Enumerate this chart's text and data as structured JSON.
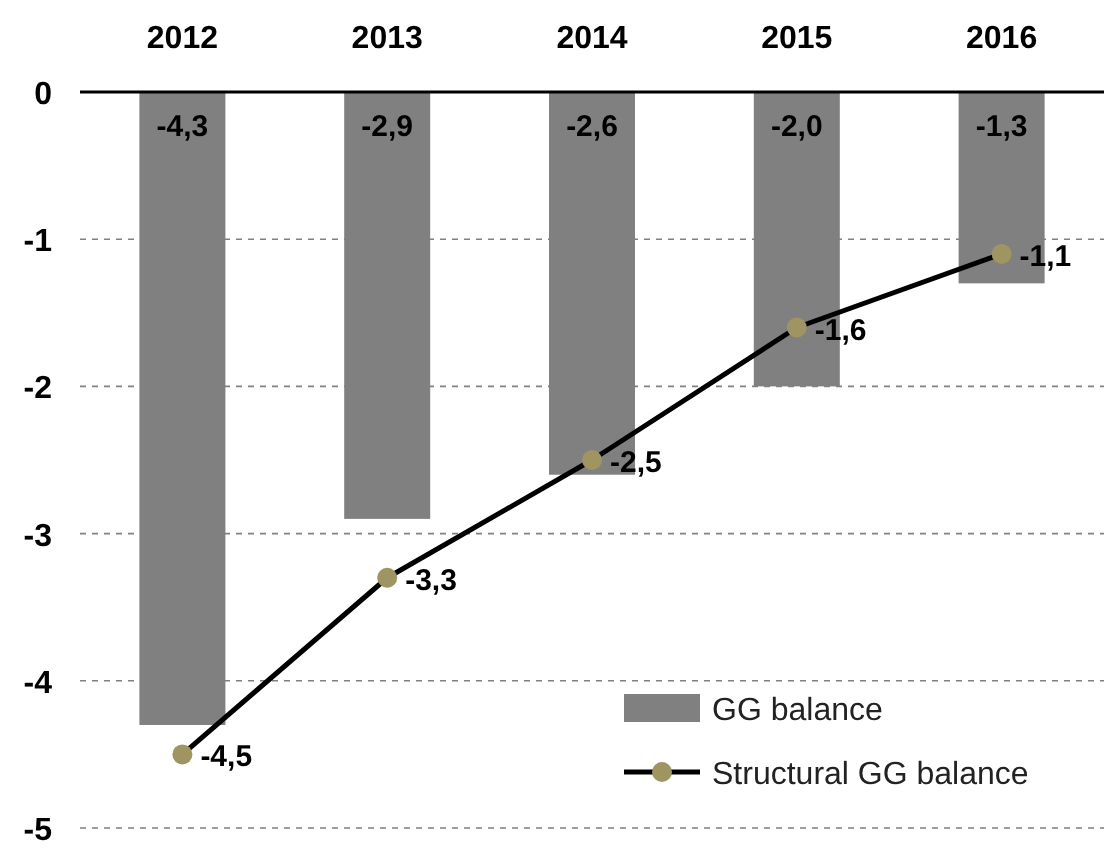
{
  "chart_data": {
    "type": "bar",
    "categories": [
      "2012",
      "2013",
      "2014",
      "2015",
      "2016"
    ],
    "series": [
      {
        "name": "GG balance",
        "color": "#808080",
        "values": [
          -4.3,
          -2.9,
          -2.6,
          -2.0,
          -1.3
        ],
        "value_labels": [
          "-4,3",
          "-2,9",
          "-2,6",
          "-2,0",
          "-1,3"
        ]
      },
      {
        "name": "Structural GG balance",
        "type": "line",
        "color": "#9e9563",
        "values": [
          -4.5,
          -3.3,
          -2.5,
          -1.6,
          -1.1
        ],
        "value_labels": [
          "-4,5",
          "-3,3",
          "-2,5",
          "-1,6",
          "-1,1"
        ]
      }
    ],
    "ylim": [
      -5,
      0
    ],
    "yticks": [
      0,
      -1,
      -2,
      -3,
      -4,
      -5
    ],
    "grid": "y",
    "legend": "bottom right",
    "marker": "circle",
    "line_style": "solid"
  }
}
